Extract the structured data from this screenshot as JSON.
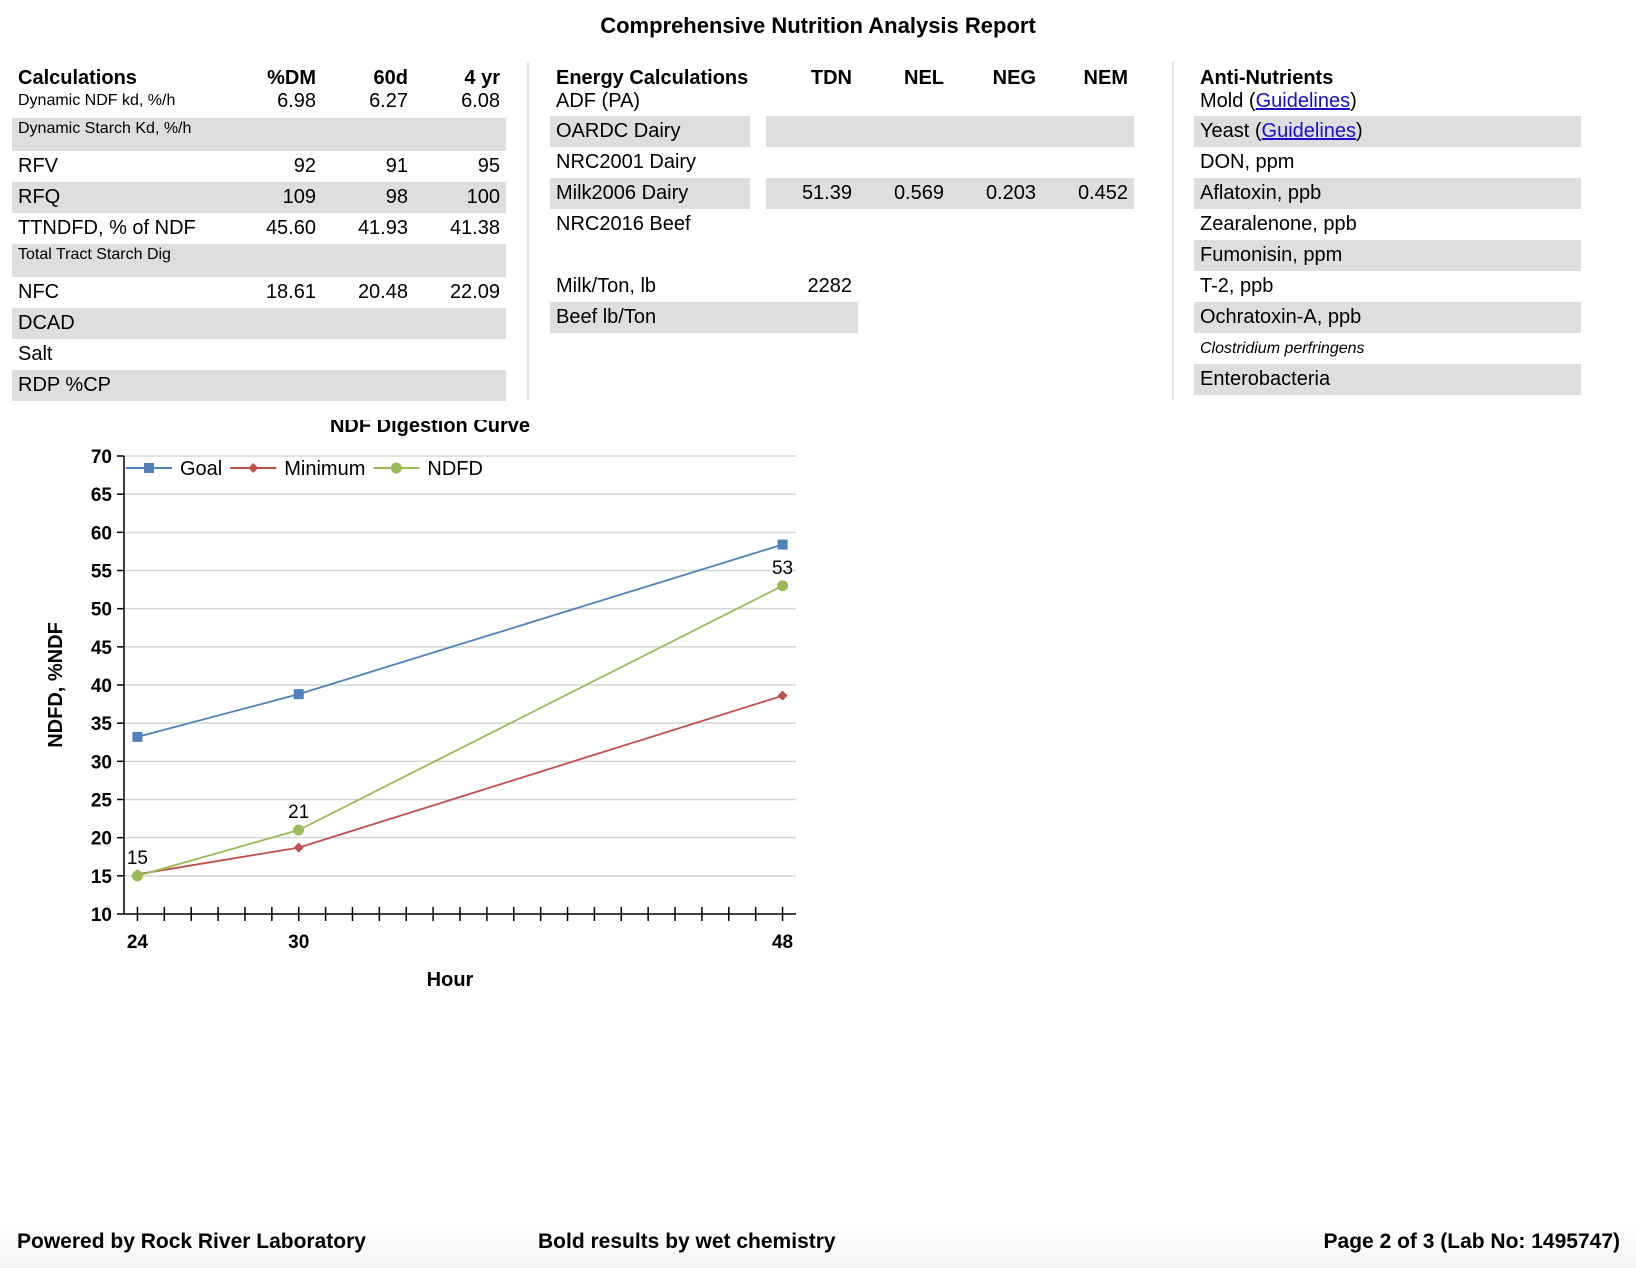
{
  "report": {
    "title": "Comprehensive Nutrition Analysis Report"
  },
  "calculations": {
    "headers": [
      "Calculations",
      "%DM",
      "60d",
      "4 yr"
    ],
    "rows": [
      {
        "label": "Dynamic NDF kd, %/h",
        "dm": "6.98",
        "d60": "6.27",
        "yr4": "6.08"
      },
      {
        "label": "Dynamic Starch Kd, %/h",
        "dm": "",
        "d60": "",
        "yr4": ""
      },
      {
        "label": "RFV",
        "dm": "92",
        "d60": "91",
        "yr4": "95"
      },
      {
        "label": "RFQ",
        "dm": "109",
        "d60": "98",
        "yr4": "100"
      },
      {
        "label": "TTNDFD, % of NDF",
        "dm": "45.60",
        "d60": "41.93",
        "yr4": "41.38"
      },
      {
        "label": "Total Tract Starch Dig",
        "dm": "",
        "d60": "",
        "yr4": ""
      },
      {
        "label": "NFC",
        "dm": "18.61",
        "d60": "20.48",
        "yr4": "22.09"
      },
      {
        "label": "DCAD",
        "dm": "",
        "d60": "",
        "yr4": ""
      },
      {
        "label": "Salt",
        "dm": "",
        "d60": "",
        "yr4": ""
      },
      {
        "label": "RDP %CP",
        "dm": "",
        "d60": "",
        "yr4": ""
      }
    ]
  },
  "energy": {
    "headers": [
      "Energy Calculations",
      "TDN",
      "NEL",
      "NEG",
      "NEM"
    ],
    "rows": [
      {
        "label": "ADF (PA)",
        "tdn": "",
        "nel": "",
        "neg": "",
        "nem": ""
      },
      {
        "label": "OARDC Dairy",
        "tdn": "",
        "nel": "",
        "neg": "",
        "nem": ""
      },
      {
        "label": "NRC2001 Dairy",
        "tdn": "",
        "nel": "",
        "neg": "",
        "nem": ""
      },
      {
        "label": "Milk2006 Dairy",
        "tdn": "51.39",
        "nel": "0.569",
        "neg": "0.203",
        "nem": "0.452"
      },
      {
        "label": "NRC2016 Beef",
        "tdn": "",
        "nel": "",
        "neg": "",
        "nem": ""
      }
    ],
    "extra": [
      {
        "label": "Milk/Ton, lb",
        "value": "2282"
      },
      {
        "label": "Beef lb/Ton",
        "value": ""
      }
    ]
  },
  "anti_nutrients": {
    "header": "Anti-Nutrients",
    "guidelines_link": "Guidelines",
    "rows": [
      {
        "prefix": "Mold (",
        "suffix": ")"
      },
      {
        "prefix": "Yeast (",
        "suffix": ")"
      },
      {
        "label": "DON, ppm"
      },
      {
        "label": "Aflatoxin, ppb"
      },
      {
        "label": "Zearalenone, ppb"
      },
      {
        "label": "Fumonisin, ppm"
      },
      {
        "label": "T-2, ppb"
      },
      {
        "label": "Ochratoxin-A, ppb"
      },
      {
        "label": "Clostridium perfringens"
      },
      {
        "label": "Enterobacteria"
      }
    ]
  },
  "chart_data": {
    "type": "line",
    "title": "NDF Digestion Curve",
    "xlabel": "Hour",
    "ylabel": "NDFD, %NDF",
    "xlim": [
      23.5,
      48.5
    ],
    "ylim": [
      10,
      70
    ],
    "x_ticks": [
      24,
      30,
      48
    ],
    "y_ticks": [
      10,
      15,
      20,
      25,
      30,
      35,
      40,
      45,
      50,
      55,
      60,
      65,
      70
    ],
    "grid": true,
    "legend": "top-left",
    "series": [
      {
        "name": "Goal",
        "color": "#4f81bd",
        "marker": "square",
        "x": [
          24,
          30,
          48
        ],
        "y": [
          33.2,
          38.8,
          58.4
        ]
      },
      {
        "name": "Minimum",
        "color": "#c0504d",
        "marker": "diamond",
        "x": [
          24,
          30,
          48
        ],
        "y": [
          15.2,
          18.7,
          38.6
        ]
      },
      {
        "name": "NDFD",
        "color": "#9bbb59",
        "marker": "circle",
        "x": [
          24,
          30,
          48
        ],
        "y": [
          15,
          21,
          53
        ]
      }
    ],
    "data_labels": [
      {
        "series": "NDFD",
        "x": 24,
        "y": 15,
        "text": "15"
      },
      {
        "series": "NDFD",
        "x": 30,
        "y": 21,
        "text": "21"
      },
      {
        "series": "NDFD",
        "x": 48,
        "y": 53,
        "text": "53"
      }
    ]
  },
  "footer": {
    "left": "Powered by Rock River Laboratory",
    "center": "Bold results by wet chemistry",
    "right": "Page 2 of 3 (Lab No: 1495747)"
  }
}
